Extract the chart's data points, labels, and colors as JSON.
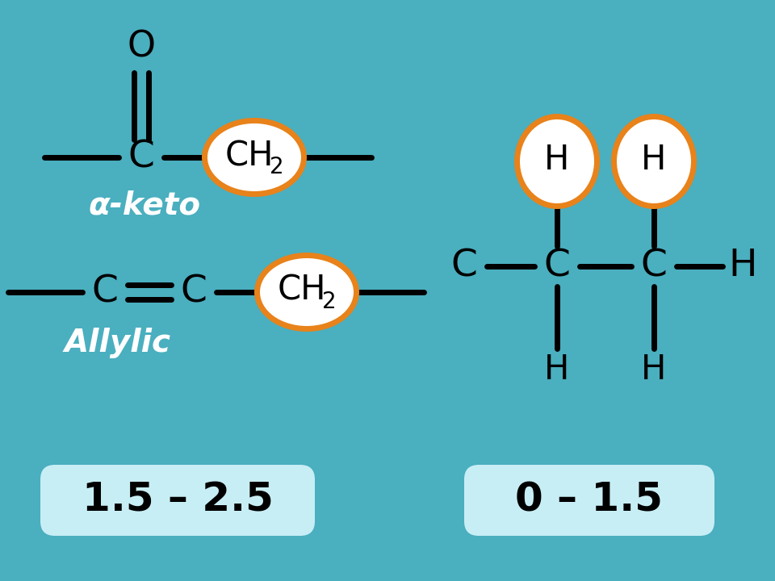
{
  "bg_color": "#4AAFBF",
  "line_color": "#000000",
  "orange_color": "#E8821A",
  "white_color": "#FFFFFF",
  "box_color": "#C8EEF5",
  "label_left": "1.5 – 2.5",
  "label_right": "0 – 1.5",
  "aketo_label": "α-keto",
  "allylic_label": "Allylic",
  "line_width": 5.0
}
